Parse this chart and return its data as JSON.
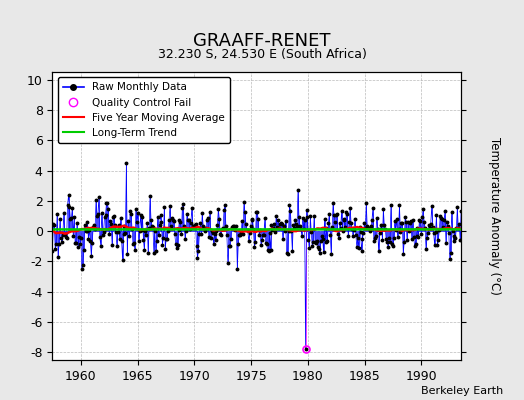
{
  "title": "GRAAFF-RENET",
  "subtitle": "32.230 S, 24.530 E (South Africa)",
  "ylabel": "Temperature Anomaly (°C)",
  "attribution": "Berkeley Earth",
  "xlim": [
    1957.5,
    1993.5
  ],
  "ylim": [
    -8.5,
    10.5
  ],
  "yticks": [
    -8,
    -6,
    -4,
    -2,
    0,
    2,
    4,
    6,
    8,
    10
  ],
  "xticks": [
    1960,
    1965,
    1970,
    1975,
    1980,
    1985,
    1990
  ],
  "raw_color": "#0000ff",
  "marker_color": "#000000",
  "qc_color": "#ff00ff",
  "mavg_color": "#ff0000",
  "trend_color": "#00cc00",
  "bg_color": "#e8e8e8",
  "plot_bg": "#ffffff"
}
